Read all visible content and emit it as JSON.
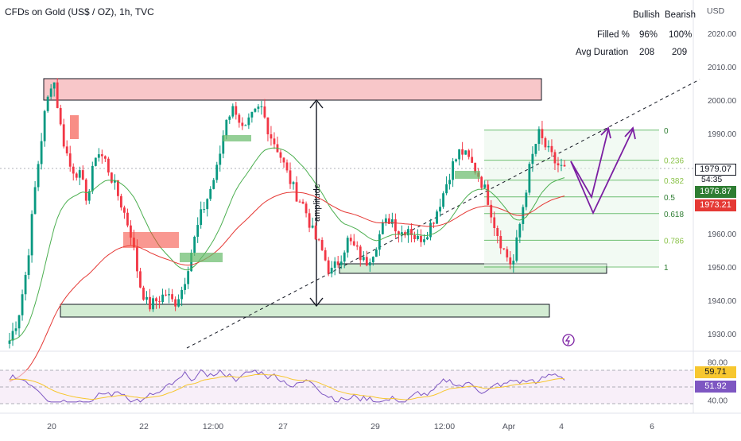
{
  "header": {
    "title": "CFDs on Gold (US$ / OZ), 1h, TVC"
  },
  "stats_table": {
    "col_bullish": "Bullish",
    "col_bearish": "Bearish",
    "rows": [
      {
        "label": "Filled %",
        "bullish": "96%",
        "bearish": "100%"
      },
      {
        "label": "Avg Duration",
        "bullish": "208",
        "bearish": "209"
      }
    ]
  },
  "annotations": {
    "amplitude": "amplitude"
  },
  "colors": {
    "up": "#089981",
    "down": "#f23645",
    "ema_fast": "#4caf50",
    "ema_slow": "#e53935",
    "zone_red": "#f8c7c9",
    "zone_green": "#d3ecd3",
    "arrow": "#7b1fa2",
    "rsi": "#7e57c2",
    "rsi_ma": "#f7c72f"
  },
  "chart_data": {
    "type": "candlestick",
    "title": "CFDs on Gold (US$ / OZ), 1h, TVC",
    "currency": "USD",
    "ylim": [
      1925,
      2025
    ],
    "y_ticks": [
      "2020.00",
      "2010.00",
      "2000.00",
      "1990.00",
      "1960.00",
      "1950.00",
      "1940.00",
      "1930.00"
    ],
    "x_ticks": [
      "20",
      "22",
      "12:00",
      "27",
      "29",
      "12:00",
      "Apr",
      "4",
      "6"
    ],
    "price_labels": {
      "last": "1979.07",
      "countdown": "54:35",
      "ema_fast": "1976.87",
      "ema_slow": "1973.21"
    },
    "close_path": [
      1928,
      1935,
      1950,
      1975,
      1995,
      2008,
      1990,
      1980,
      1978,
      1970,
      1985,
      1982,
      1975,
      1968,
      1960,
      1945,
      1938,
      1940,
      1942,
      1939,
      1944,
      1955,
      1965,
      1972,
      1980,
      1995,
      1998,
      1990,
      1995,
      1998,
      1990,
      1985,
      1978,
      1972,
      1968,
      1960,
      1955,
      1948,
      1952,
      1958,
      1955,
      1951,
      1955,
      1962,
      1965,
      1960,
      1962,
      1958,
      1960,
      1965,
      1972,
      1980,
      1985,
      1982,
      1978,
      1972,
      1962,
      1955,
      1950,
      1965,
      1980,
      1990,
      1985,
      1981,
      1979
    ],
    "fibonacci": [
      {
        "level": "0",
        "price": 1991
      },
      {
        "level": "0.236",
        "price": 1982
      },
      {
        "level": "0.382",
        "price": 1976
      },
      {
        "level": "0.5",
        "price": 1971
      },
      {
        "level": "0.618",
        "price": 1966
      },
      {
        "level": "0.786",
        "price": 1958
      },
      {
        "level": "1",
        "price": 1950
      }
    ],
    "rsi": {
      "y_ticks": [
        "80.00",
        "40.00"
      ],
      "value": "51.92",
      "ma_value": "59.71"
    }
  }
}
